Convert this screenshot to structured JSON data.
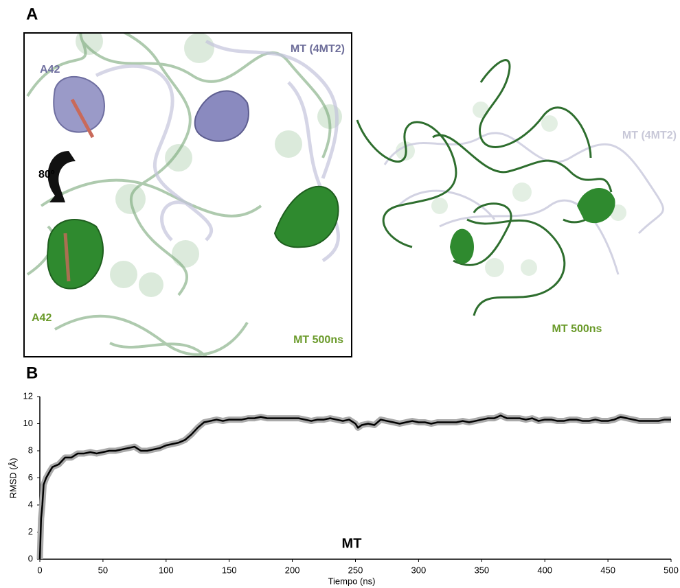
{
  "panel_a": {
    "label": "A",
    "inset": {
      "reference_label": "MT (4MT2)",
      "residue_reference": "A42",
      "rotation": "80º",
      "residue_simulated": "A42",
      "simulated_label": "MT 500ns"
    },
    "overlay": {
      "reference_label": "MT (4MT2)",
      "simulated_label": "MT 500ns"
    }
  },
  "chart_data": {
    "type": "line",
    "panel_label": "B",
    "title": "MT",
    "x_label": "Tiempo (ns)",
    "y_label": "RMSD (Å)",
    "xlim": [
      0,
      500
    ],
    "ylim": [
      0,
      12
    ],
    "xticks": [
      0,
      50,
      100,
      150,
      200,
      250,
      300,
      350,
      400,
      450,
      500
    ],
    "yticks": [
      0,
      2,
      4,
      6,
      8,
      10,
      12
    ],
    "grid": false,
    "shadow_color": "#aaaaaa",
    "x": [
      0,
      1,
      2,
      3,
      5,
      8,
      10,
      15,
      20,
      25,
      30,
      35,
      40,
      45,
      50,
      55,
      60,
      65,
      70,
      75,
      80,
      85,
      90,
      95,
      100,
      105,
      110,
      115,
      120,
      125,
      130,
      135,
      140,
      145,
      150,
      155,
      160,
      165,
      170,
      175,
      180,
      185,
      190,
      195,
      200,
      205,
      210,
      215,
      220,
      225,
      230,
      235,
      240,
      245,
      250,
      252,
      255,
      260,
      265,
      270,
      275,
      280,
      285,
      290,
      295,
      300,
      305,
      310,
      315,
      320,
      325,
      330,
      335,
      340,
      345,
      350,
      355,
      360,
      365,
      370,
      375,
      380,
      385,
      390,
      395,
      400,
      405,
      410,
      415,
      420,
      425,
      430,
      435,
      440,
      445,
      450,
      455,
      460,
      465,
      470,
      475,
      480,
      485,
      490,
      495,
      500
    ],
    "series": [
      {
        "name": "MT",
        "color": "#000000",
        "values": [
          0,
          3,
          4,
          5.5,
          6,
          6.5,
          6.8,
          7,
          7.5,
          7.5,
          7.8,
          7.8,
          7.9,
          7.8,
          7.9,
          8,
          8,
          8.1,
          8.2,
          8.3,
          8,
          8,
          8.1,
          8.2,
          8.4,
          8.5,
          8.6,
          8.8,
          9.2,
          9.7,
          10.1,
          10.2,
          10.3,
          10.2,
          10.3,
          10.3,
          10.3,
          10.4,
          10.4,
          10.5,
          10.4,
          10.4,
          10.4,
          10.4,
          10.4,
          10.4,
          10.3,
          10.2,
          10.3,
          10.3,
          10.4,
          10.3,
          10.2,
          10.3,
          10.0,
          9.7,
          9.9,
          10.0,
          9.9,
          10.3,
          10.2,
          10.1,
          10.0,
          10.1,
          10.2,
          10.1,
          10.1,
          10.0,
          10.1,
          10.1,
          10.1,
          10.1,
          10.2,
          10.1,
          10.2,
          10.3,
          10.4,
          10.4,
          10.6,
          10.4,
          10.4,
          10.4,
          10.3,
          10.4,
          10.2,
          10.3,
          10.3,
          10.2,
          10.2,
          10.3,
          10.3,
          10.2,
          10.2,
          10.3,
          10.2,
          10.2,
          10.3,
          10.5,
          10.4,
          10.3,
          10.2,
          10.2,
          10.2,
          10.2,
          10.3,
          10.3
        ]
      }
    ]
  }
}
